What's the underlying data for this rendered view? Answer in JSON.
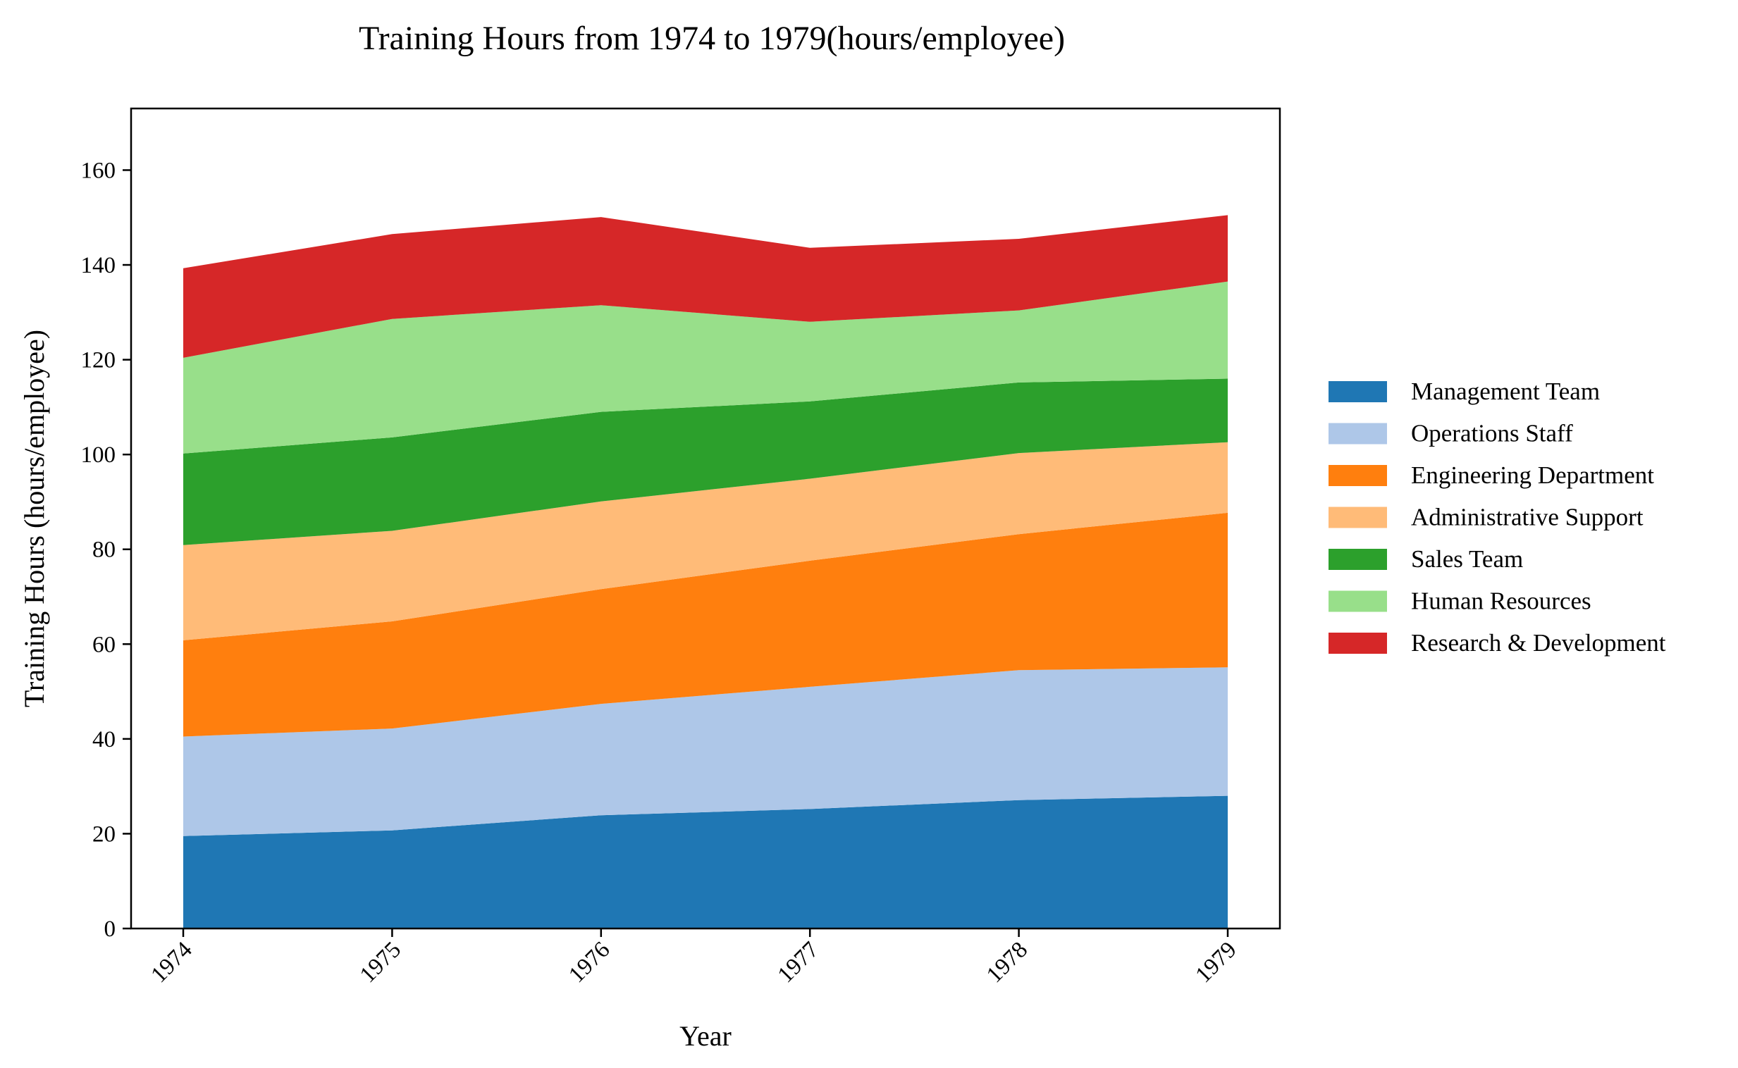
{
  "chart_data": {
    "type": "area",
    "stacked": true,
    "title": "Training Hours from 1974 to 1979(hours/employee)",
    "xlabel": "Year",
    "ylabel": "Training Hours (hours/employee)",
    "x": [
      "1974",
      "1975",
      "1976",
      "1977",
      "1978",
      "1979"
    ],
    "ylim": [
      0,
      173
    ],
    "yticks": [
      0,
      20,
      40,
      60,
      80,
      100,
      120,
      140,
      160
    ],
    "grid": false,
    "legend_position": "right",
    "series": [
      {
        "name": "Management Team",
        "color": "#1f77b4",
        "values": [
          19.5,
          20.7,
          23.9,
          25.2,
          27.1,
          28.0
        ]
      },
      {
        "name": "Operations Staff",
        "color": "#aec7e8",
        "values": [
          21.0,
          21.5,
          23.5,
          25.8,
          27.4,
          27.1
        ]
      },
      {
        "name": "Engineering Department",
        "color": "#ff7f0e",
        "values": [
          20.3,
          22.6,
          24.2,
          26.6,
          28.7,
          32.6
        ]
      },
      {
        "name": "Administrative Support",
        "color": "#ffbb78",
        "values": [
          20.1,
          19.1,
          18.5,
          17.3,
          17.1,
          14.9
        ]
      },
      {
        "name": "Sales Team",
        "color": "#2ca02c",
        "values": [
          19.3,
          19.7,
          18.9,
          16.3,
          14.9,
          13.4
        ]
      },
      {
        "name": "Human Resources",
        "color": "#98df8a",
        "values": [
          20.2,
          25.0,
          22.5,
          16.8,
          15.2,
          20.5
        ]
      },
      {
        "name": "Research & Development",
        "color": "#d62728",
        "values": [
          18.9,
          17.9,
          18.6,
          15.6,
          15.1,
          14.0
        ]
      }
    ]
  }
}
